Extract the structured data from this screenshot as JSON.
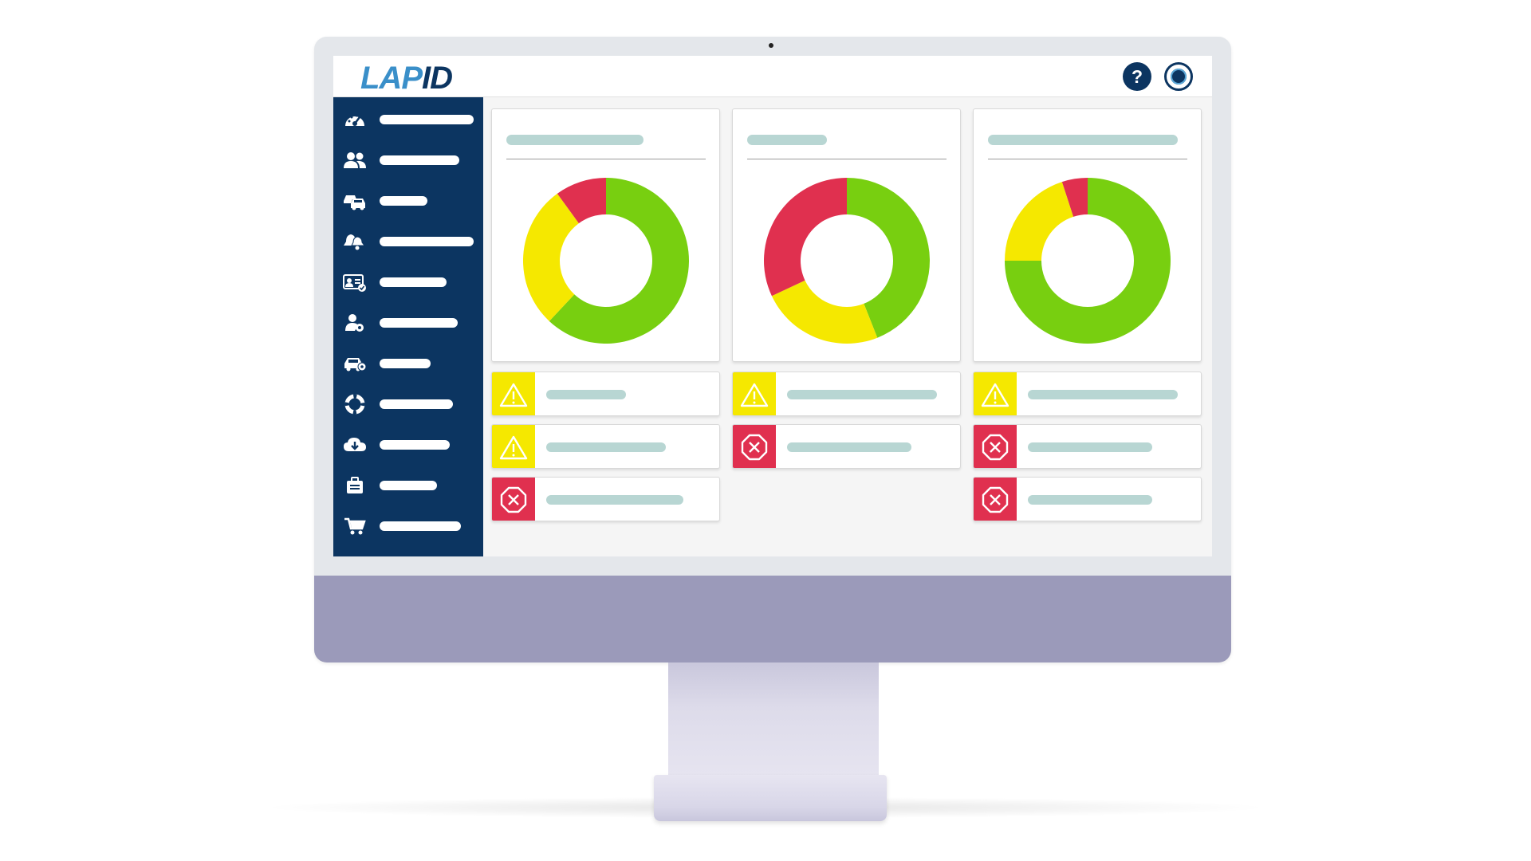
{
  "app": {
    "logo_part1": "LAP",
    "logo_part2": "ID",
    "help_label": "?"
  },
  "colors": {
    "sidebar": "#0c3561",
    "accent_blue": "#3a8fc9",
    "ok": "#78cf10",
    "warning": "#f5e800",
    "error": "#e0304f",
    "placeholder": "#b8d6d3"
  },
  "sidebar": {
    "items": [
      {
        "icon": "dashboard-gauge-icon"
      },
      {
        "icon": "users-icon"
      },
      {
        "icon": "vehicles-icon"
      },
      {
        "icon": "alerts-bell-icon"
      },
      {
        "icon": "license-card-icon"
      },
      {
        "icon": "driver-settings-icon"
      },
      {
        "icon": "car-settings-icon"
      },
      {
        "icon": "support-lifebuoy-icon"
      },
      {
        "icon": "cloud-download-icon"
      },
      {
        "icon": "briefcase-icon"
      },
      {
        "icon": "shopping-cart-icon"
      }
    ]
  },
  "dashboard": {
    "charts": [
      {
        "segments": [
          {
            "status": "ok",
            "value": 62
          },
          {
            "status": "warning",
            "value": 28
          },
          {
            "status": "error",
            "value": 10
          }
        ]
      },
      {
        "segments": [
          {
            "status": "ok",
            "value": 44
          },
          {
            "status": "warning",
            "value": 24
          },
          {
            "status": "error",
            "value": 32
          }
        ]
      },
      {
        "segments": [
          {
            "status": "ok",
            "value": 75
          },
          {
            "status": "warning",
            "value": 20
          },
          {
            "status": "error",
            "value": 5
          }
        ]
      }
    ],
    "status_rows": [
      [
        "warning",
        "warning",
        "error"
      ],
      [
        "warning",
        "error"
      ],
      [
        "warning",
        "error",
        "error"
      ]
    ]
  }
}
